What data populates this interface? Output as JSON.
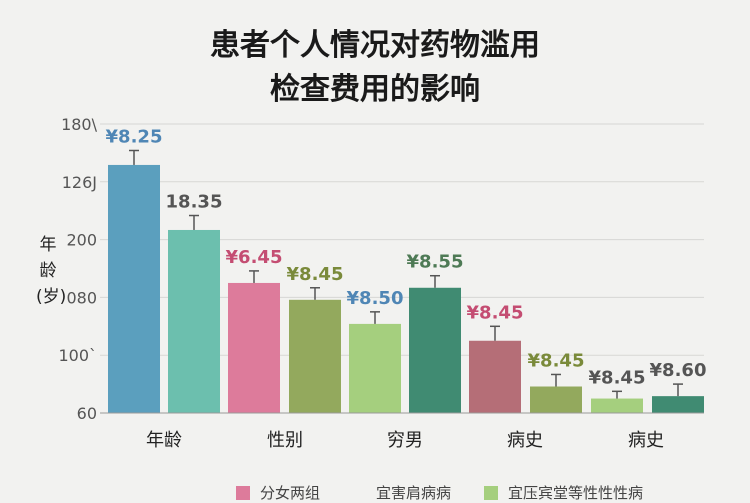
{
  "chart_data": {
    "type": "bar",
    "title_lines": [
      "患者个人情况对药物滥用",
      "检查费用的影响"
    ],
    "ylabel": "年龄(岁)",
    "yticks": [
      "180\\",
      "126J",
      "200",
      "080",
      "100`",
      "60"
    ],
    "ylim": [
      60,
      180
    ],
    "categories": [
      "年龄",
      "性别",
      "穷男",
      "病史",
      "病史"
    ],
    "series": [
      {
        "name": "分女两组",
        "values": [
          163,
          136,
          114,
          107,
          134
        ]
      },
      {
        "name": "宜害肩病病",
        "values": [
          112,
          97,
          71,
          66,
          83
        ]
      },
      {
        "name": "宜压宾堂等性性性病",
        "values": [
          72,
          70,
          100,
          67,
          63
        ]
      }
    ],
    "bars": [
      {
        "label": "¥8.25",
        "value": 163,
        "error": 6,
        "color": "#5b9fbe",
        "label_color": "#4f86b5"
      },
      {
        "label": "18.35",
        "value": 136,
        "error": 6,
        "color": "#6cbfae",
        "label_color": "#555555"
      },
      {
        "label": "¥6.45",
        "value": 114,
        "error": 5,
        "color": "#dd7b9b",
        "label_color": "#c44d72"
      },
      {
        "label": "¥8.45",
        "value": 107,
        "error": 5,
        "color": "#93a95d",
        "label_color": "#7a8a3a"
      },
      {
        "label": "¥8.50",
        "value": 97,
        "error": 5,
        "color": "#a5cf7e",
        "label_color": "#4f86b5"
      },
      {
        "label": "¥8.55",
        "value": 112,
        "error": 5,
        "color": "#408b72",
        "label_color": "#4e7a55"
      },
      {
        "label": "¥8.45",
        "value": 90,
        "error": 6,
        "color": "#b56e77",
        "label_color": "#c44d72"
      },
      {
        "label": "¥8.45",
        "value": 71,
        "error": 5,
        "color": "#93a95d",
        "label_color": "#7a8a3a"
      },
      {
        "label": "¥8.45",
        "value": 66,
        "error": 3,
        "color": "#a5cf7e",
        "label_color": "#555555"
      },
      {
        "label": "¥8.60",
        "value": 67,
        "error": 5,
        "color": "#408b72",
        "label_color": "#555555"
      }
    ],
    "legend": [
      {
        "label": "分女两组",
        "color": "#dd7b9b"
      },
      {
        "label": "宜害肩病病",
        "color": "#f2f2f0"
      },
      {
        "label": "宜压宾堂等性性性病",
        "color": "#a5cf7e"
      }
    ],
    "grid": true,
    "legend_position": "bottom"
  }
}
